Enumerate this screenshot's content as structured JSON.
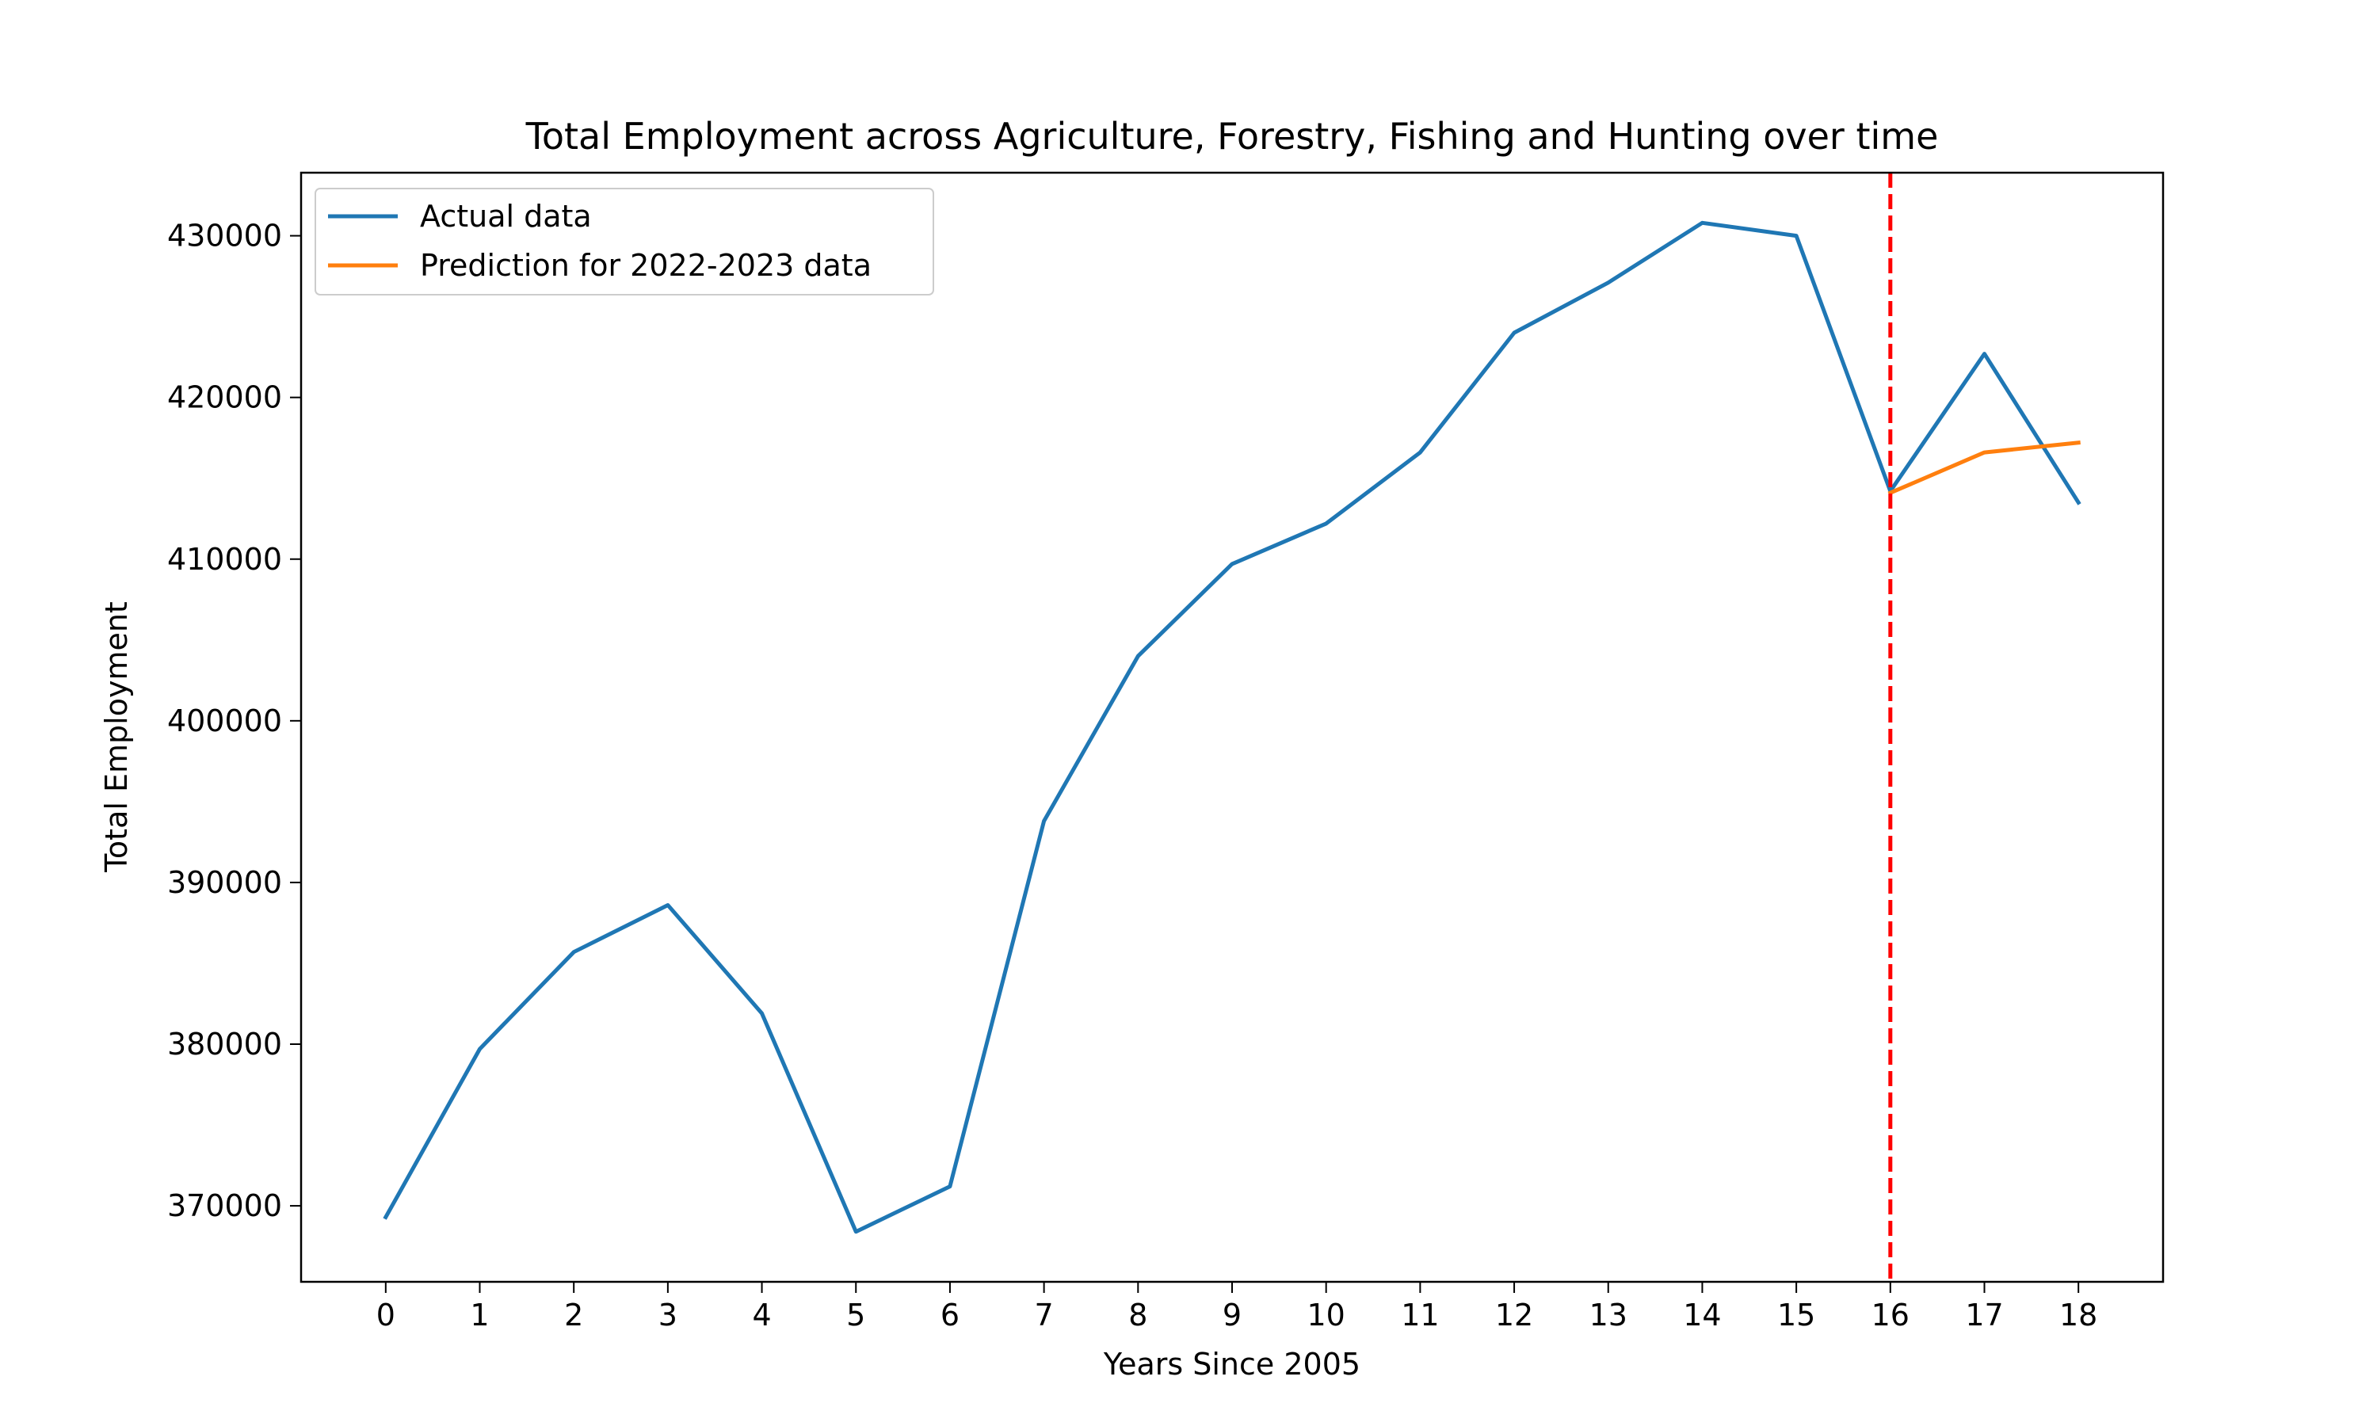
{
  "chart_data": {
    "type": "line",
    "title": "Total Employment across Agriculture, Forestry, Fishing and Hunting over time",
    "xlabel": "Years Since 2005",
    "ylabel": "Total Employment",
    "xlim": [
      -0.9,
      18.9
    ],
    "ylim": [
      365300,
      433900
    ],
    "x_ticks": [
      0,
      1,
      2,
      3,
      4,
      5,
      6,
      7,
      8,
      9,
      10,
      11,
      12,
      13,
      14,
      15,
      16,
      17,
      18
    ],
    "y_ticks": [
      370000,
      380000,
      390000,
      400000,
      410000,
      420000,
      430000
    ],
    "grid": false,
    "legend_position": "upper-left",
    "series": [
      {
        "name": "Actual data",
        "color": "#1f77b4",
        "x": [
          0,
          1,
          2,
          3,
          4,
          5,
          6,
          7,
          8,
          9,
          10,
          11,
          12,
          13,
          14,
          15,
          16,
          17,
          18
        ],
        "y": [
          369300,
          379700,
          385700,
          388600,
          381900,
          368400,
          371200,
          393800,
          404000,
          409700,
          412200,
          416600,
          424000,
          427100,
          430800,
          430000,
          414200,
          422700,
          413500
        ]
      },
      {
        "name": "Prediction for 2022-2023 data",
        "color": "#ff7f0e",
        "x": [
          16,
          17,
          18
        ],
        "y": [
          414100,
          416600,
          417200
        ]
      }
    ],
    "reference_line": {
      "x": 16,
      "color": "#ff0000",
      "style": "dashed"
    }
  }
}
